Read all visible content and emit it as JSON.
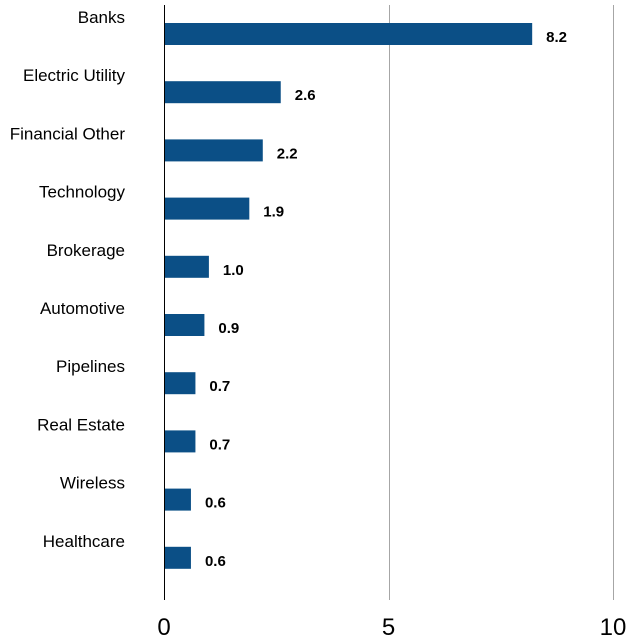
{
  "chart_data": {
    "type": "bar",
    "orientation": "horizontal",
    "categories": [
      "Banks",
      "Electric Utility",
      "Financial Other",
      "Technology",
      "Brokerage",
      "Automotive",
      "Pipelines",
      "Real Estate",
      "Wireless",
      "Healthcare"
    ],
    "values": [
      8.2,
      2.6,
      2.2,
      1.9,
      1.0,
      0.9,
      0.7,
      0.7,
      0.6,
      0.6
    ],
    "data_labels": [
      "8.2",
      "2.6",
      "2.2",
      "1.9",
      "1.0",
      "0.9",
      "0.7",
      "0.7",
      "0.6",
      "0.6"
    ],
    "xlim": [
      0,
      10
    ],
    "xticks": [
      0,
      5,
      10
    ],
    "xtick_labels": [
      "0",
      "5",
      "10"
    ],
    "title": "",
    "xlabel": "",
    "ylabel": "",
    "grid": "vertical",
    "legend": "none",
    "colors": {
      "bar": "#0b4f86",
      "gridline": "#a6a6a6",
      "axis": "#000000",
      "text": "#000000"
    }
  }
}
